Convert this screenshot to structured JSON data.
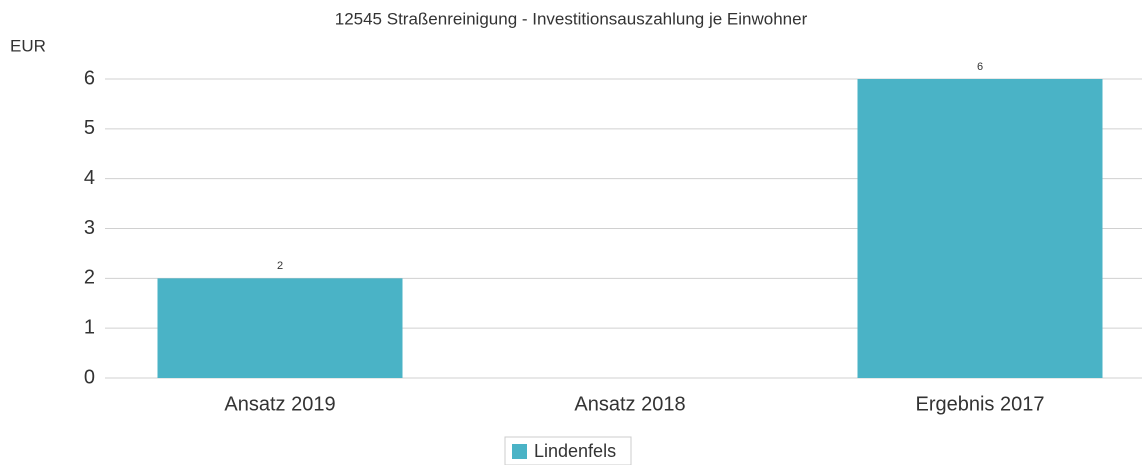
{
  "chart_data": {
    "type": "bar",
    "title": "12545 Straßenreinigung - Investitionsauszahlung je Einwohner",
    "y_label": "EUR",
    "categories": [
      "Ansatz 2019",
      "Ansatz 2018",
      "Ergebnis 2017"
    ],
    "series": [
      {
        "name": "Lindenfels",
        "color": "#4ab3c6",
        "values": [
          2,
          null,
          6
        ]
      }
    ],
    "ylim": [
      0,
      6
    ],
    "yticks": [
      0,
      1,
      2,
      3,
      4,
      5,
      6
    ],
    "grid": true,
    "legend": "bottom"
  }
}
